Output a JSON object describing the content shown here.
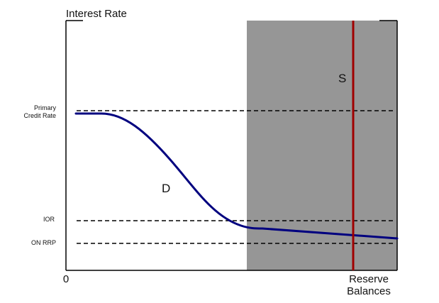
{
  "diagram": {
    "y_axis_label": "Interest Rate",
    "x_axis_label_line1": "Reserve",
    "x_axis_label_line2": "Balances",
    "origin_label": "0",
    "rate_labels": {
      "primary_credit_line1": "Primary",
      "primary_credit_line2": "Credit Rate",
      "ior": "IOR",
      "on_rrp": "ON RRP"
    },
    "curve_labels": {
      "demand": "D",
      "supply": "S"
    },
    "colors": {
      "demand_curve": "#00007f",
      "supply_curve": "#a00000",
      "shaded_region": "#969696",
      "axes": "#000000",
      "rate_lines": "#000000"
    }
  }
}
